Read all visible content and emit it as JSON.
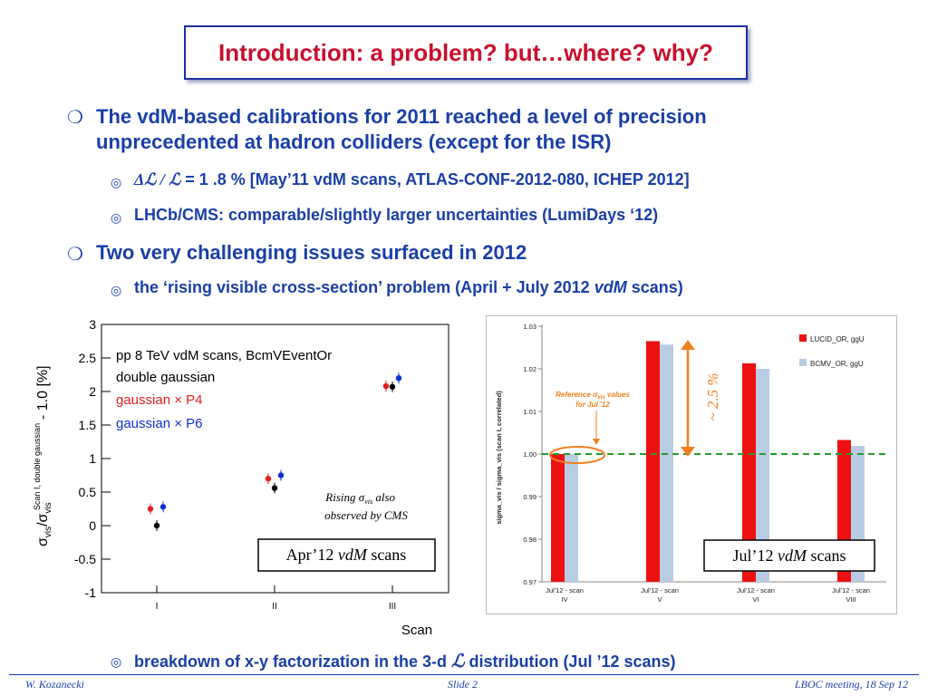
{
  "title": "Introduction: a problem? but…where? why?",
  "bullets": {
    "b1_line1": "The vdM-based calibrations for 2011 reached a level of precision",
    "b1_line2": "unprecedented at hadron colliders (except for the ISR)",
    "sub1_sym": "Δℒ / ℒ",
    "sub1_text": "= 1 .8 %  [May’11 vdM scans, ATLAS-CONF-2012-080, ICHEP 2012]",
    "sub2": "LHCb/CMS: comparable/slightly larger uncertainties (LumiDays ‘12)",
    "b2": "Two very challenging issues surfaced in 2012",
    "sub3_a": "the ‘rising visible cross-section’ problem (April + July 2012 ",
    "sub3_b": "vdM",
    "sub3_c": " scans)",
    "sub4_a": "breakdown of x-y factorization in the 3-d ",
    "sub4_b": "ℒ",
    "sub4_c": " distribution (Jul ’12 scans)"
  },
  "footer": {
    "author": "W. Kozanecki",
    "slide": "Slide 2",
    "meeting": "LBOC meeting, 18 Sep 12"
  },
  "left_plot": {
    "legend": [
      "pp 8 TeV vdM scans, BcmVEventOr",
      "double gaussian",
      "gaussian × P4",
      "gaussian × P6"
    ],
    "ylabel_main": "σ",
    "ylabel_sub1": "vis",
    "ylabel_sub2": "Scan I, double gaussian",
    "ylabel_tail": "- 1.0 [%]",
    "xlabel": "Scan",
    "note1": "Rising σ",
    "note_sub": "vis",
    "note1_tail": " also",
    "note2": "observed by CMS",
    "box_a": "Apr’12 ",
    "box_b": "vdM",
    "box_c": " scans"
  },
  "right_plot": {
    "legend": [
      "LUCID_OR, ggU",
      "BCMV_OR, ggU"
    ],
    "ylabel": "sigma_vis / sigma_vis (scan I, correlated)",
    "annot1": "Reference σ",
    "annot_sub": "vis",
    "annot1_tail": " values",
    "annot2": "for Jul '12",
    "arrow_label": "~ 2.5 %",
    "box_a": "Jul’12 ",
    "box_b": "vdM",
    "box_c": " scans",
    "ref_line": 1.0
  },
  "chart_data": [
    {
      "type": "scatter",
      "xlabel": "Scan",
      "ylabel": "σvis/σvis Scan I, double gaussian - 1.0 [%]",
      "categories": [
        "I",
        "II",
        "III"
      ],
      "ylim": [
        -1,
        3
      ],
      "yticks": [
        "3",
        "2.5",
        "2",
        "1.5",
        "1",
        "0.5",
        "0",
        "-0.5",
        "-1"
      ],
      "series": [
        {
          "name": "double gaussian",
          "color": "#000000",
          "values": [
            0.0,
            0.56,
            2.07
          ]
        },
        {
          "name": "gaussian × P4",
          "color": "#e02020",
          "values": [
            0.25,
            0.7,
            2.08
          ]
        },
        {
          "name": "gaussian × P6",
          "color": "#1030d0",
          "values": [
            0.28,
            0.75,
            2.2
          ]
        }
      ]
    },
    {
      "type": "bar",
      "ylabel": "sigma_vis / sigma_vis (scan I, correlated)",
      "categories": [
        "Jul'12 - scan IV",
        "Jul'12 - scan V",
        "Jul'12 - scan VI",
        "Jul'12 - scan VIII"
      ],
      "ylim": [
        0.97,
        1.03
      ],
      "yticks": [
        "1.03",
        "1.02",
        "1.01",
        "1.00",
        "0.99",
        "0.98",
        "0.97"
      ],
      "series": [
        {
          "name": "LUCID_OR, ggU",
          "color": "#ee1111",
          "values": [
            1.0,
            1.0265,
            1.0213,
            1.0033
          ]
        },
        {
          "name": "BCMV_OR, ggU",
          "color": "#b8cce4",
          "values": [
            1.0,
            1.0257,
            1.02,
            1.0019
          ]
        }
      ]
    }
  ]
}
